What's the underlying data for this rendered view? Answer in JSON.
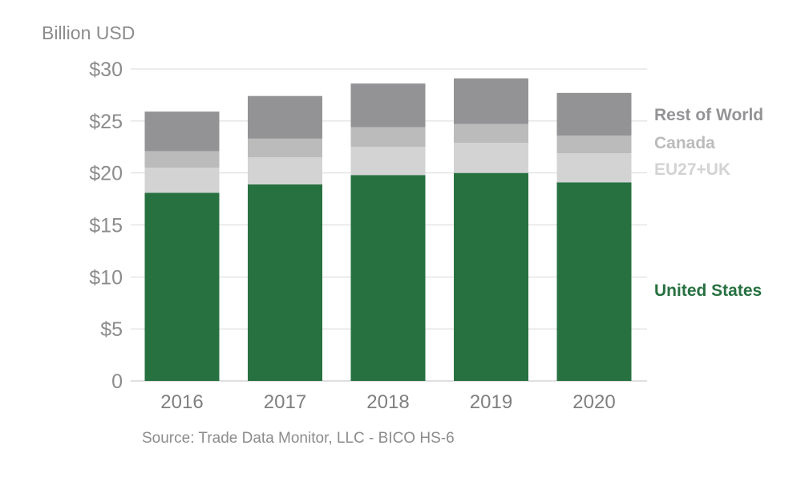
{
  "chart_data": {
    "type": "bar",
    "stacked": true,
    "ylabel": "Billion USD",
    "source": "Source: Trade Data Monitor, LLC - BICO HS-6",
    "categories": [
      "2016",
      "2017",
      "2018",
      "2019",
      "2020"
    ],
    "ylim": [
      0,
      30
    ],
    "yticks": [
      {
        "value": 0,
        "label": "0"
      },
      {
        "value": 5,
        "label": "$5"
      },
      {
        "value": 10,
        "label": "$10"
      },
      {
        "value": 15,
        "label": "$15"
      },
      {
        "value": 20,
        "label": "$20"
      },
      {
        "value": 25,
        "label": "$25"
      },
      {
        "value": 30,
        "label": "$30"
      }
    ],
    "grid": true,
    "legend_position": "right",
    "series": [
      {
        "name": "United States",
        "color": "#277141",
        "values": [
          18.1,
          18.9,
          19.8,
          20.0,
          19.1
        ]
      },
      {
        "name": "EU27+UK",
        "color": "#d3d3d4",
        "values": [
          2.4,
          2.6,
          2.7,
          2.9,
          2.8
        ]
      },
      {
        "name": "Canada",
        "color": "#bbbbbc",
        "values": [
          1.6,
          1.8,
          1.9,
          1.8,
          1.7
        ]
      },
      {
        "name": "Rest of World",
        "color": "#939396",
        "values": [
          3.8,
          4.1,
          4.2,
          4.4,
          4.1
        ]
      }
    ]
  }
}
